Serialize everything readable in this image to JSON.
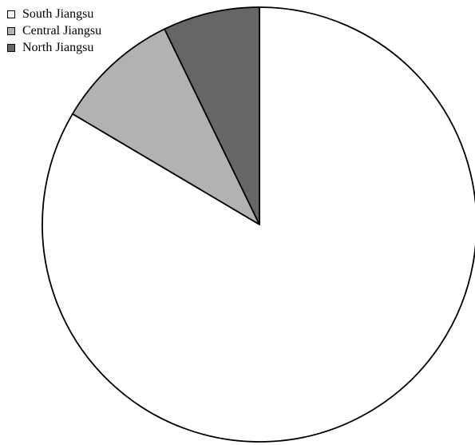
{
  "chart_data": {
    "type": "pie",
    "title": "",
    "start_angle_deg": 0,
    "direction": "clockwise",
    "legend_position": "top-left",
    "slices": [
      {
        "name": "South Jiangsu",
        "value": 83.5,
        "color": "#ffffff"
      },
      {
        "name": "Central Jiangsu",
        "value": 9.3,
        "color": "#b2b2b2"
      },
      {
        "name": "North Jiangsu",
        "value": 7.2,
        "color": "#666666"
      }
    ],
    "stroke_color": "#000000"
  }
}
